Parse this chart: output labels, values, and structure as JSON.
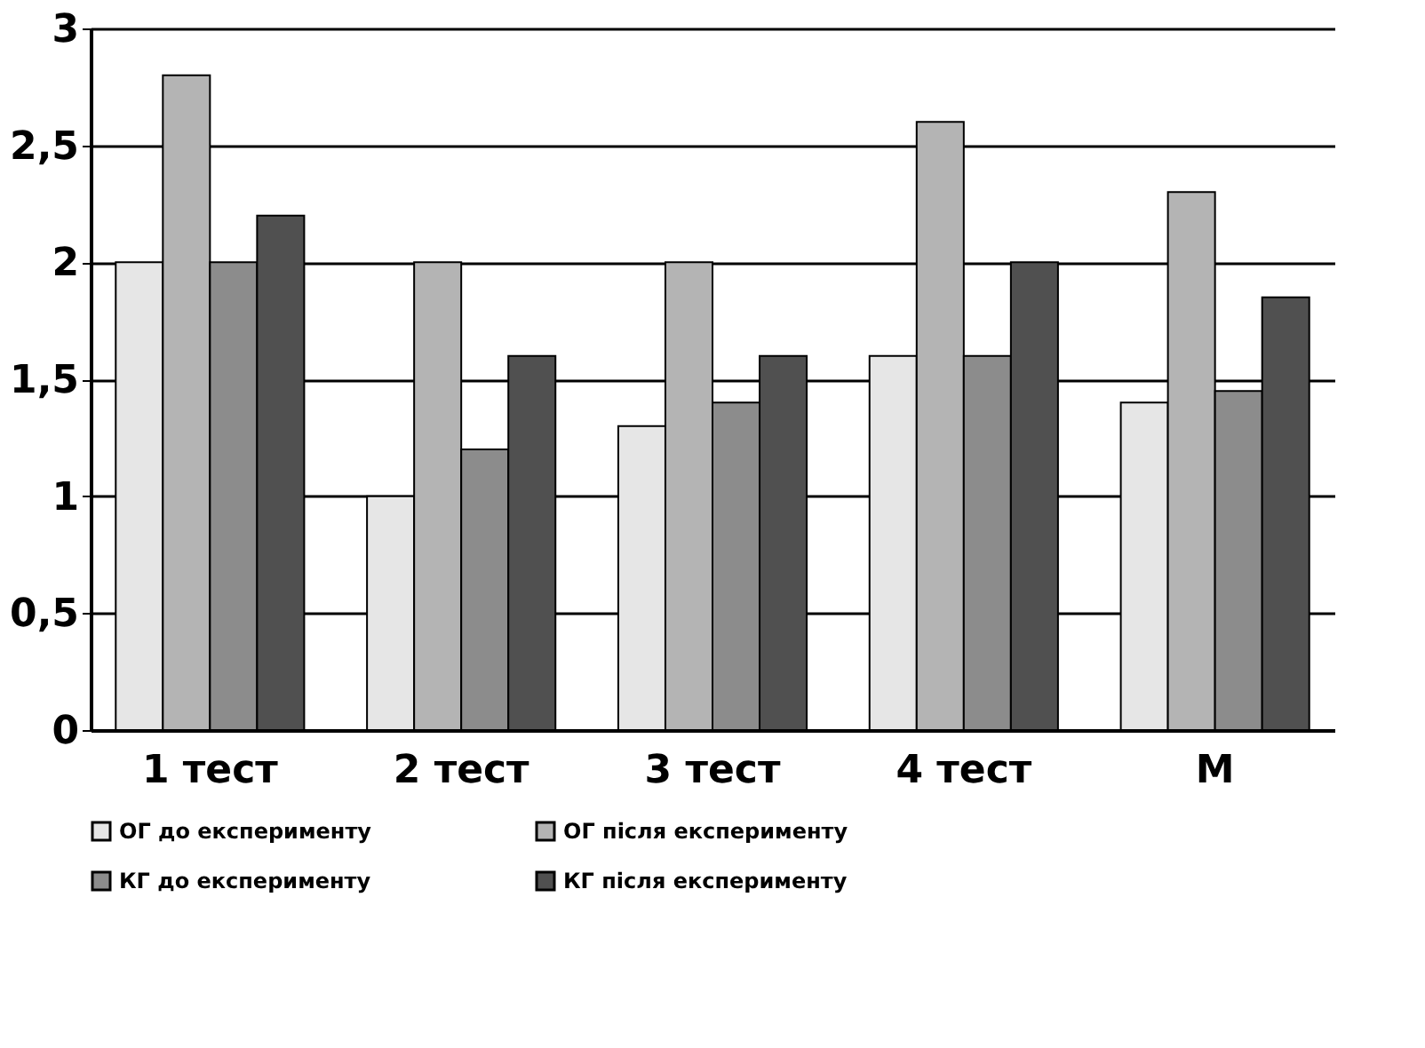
{
  "chart_data": {
    "type": "bar",
    "categories": [
      "1 тест",
      "2 тест",
      "3 тест",
      "4 тест",
      "М"
    ],
    "series": [
      {
        "name": "ОГ до експерименту",
        "color": "#e6e6e6",
        "values": [
          2,
          1,
          1.3,
          1.6,
          1.4
        ]
      },
      {
        "name": "ОГ після експерименту",
        "color": "#b4b4b4",
        "values": [
          2.8,
          2,
          2,
          2.6,
          2.3
        ]
      },
      {
        "name": "КГ до експерименту",
        "color": "#8c8c8c",
        "values": [
          2,
          1.2,
          1.4,
          1.6,
          1.45
        ]
      },
      {
        "name": "КГ після експерименту",
        "color": "#505050",
        "values": [
          2.2,
          1.6,
          1.6,
          2,
          1.85
        ]
      }
    ],
    "ylim": [
      0,
      3
    ],
    "yticks": [
      0,
      {
        "value": 0.5,
        "label": "0,5"
      },
      1,
      {
        "value": 1.5,
        "label": "1,5"
      },
      2,
      {
        "value": 2.5,
        "label": "2,5"
      },
      3
    ],
    "grid": "y",
    "legend": "bottom"
  }
}
